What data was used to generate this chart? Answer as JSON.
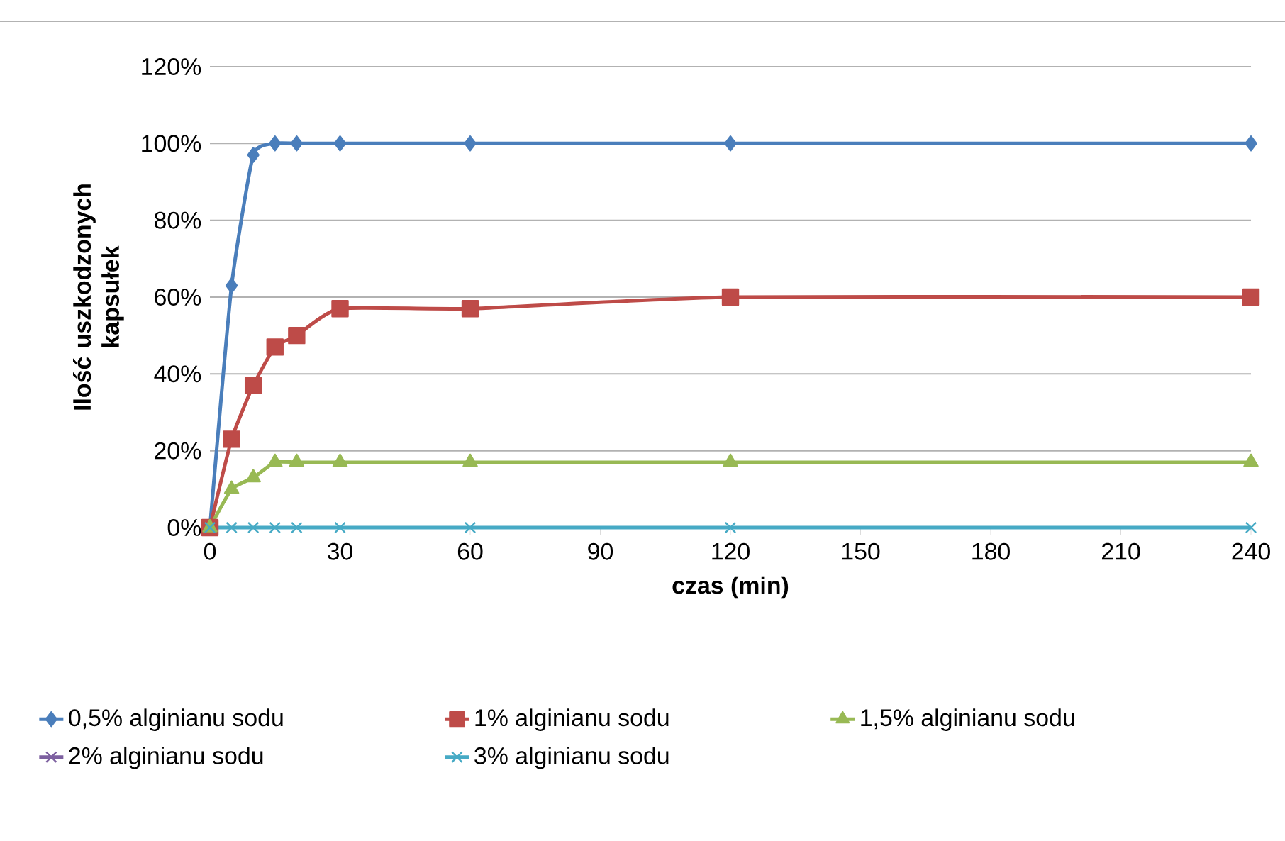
{
  "chart_data": {
    "type": "line",
    "xlabel": "czas (min)",
    "ylabel": "Ilość uszkodzonych kapsułek",
    "x": [
      0,
      5,
      10,
      15,
      20,
      30,
      60,
      120,
      240
    ],
    "xlim": [
      0,
      240
    ],
    "xticks": [
      0,
      30,
      60,
      90,
      120,
      150,
      180,
      210,
      240
    ],
    "ylim": [
      0,
      120
    ],
    "yticks": [
      {
        "value": 0,
        "label": "0%"
      },
      {
        "value": 20,
        "label": "20%"
      },
      {
        "value": 40,
        "label": "40%"
      },
      {
        "value": 60,
        "label": "60%"
      },
      {
        "value": 80,
        "label": "80%"
      },
      {
        "value": 100,
        "label": "100%"
      },
      {
        "value": 120,
        "label": "120%"
      }
    ],
    "grid": "y",
    "legend": "bottom",
    "series": [
      {
        "name": "0,5% alginianu sodu",
        "color": "#4a7ebb",
        "marker": "diamond",
        "values": [
          0,
          63,
          97,
          100,
          100,
          100,
          100,
          100,
          100
        ]
      },
      {
        "name": "1% alginianu sodu",
        "color": "#be4b48",
        "marker": "square",
        "values": [
          0,
          23,
          37,
          47,
          50,
          57,
          57,
          60,
          60
        ]
      },
      {
        "name": "1,5% alginianu sodu",
        "color": "#98b954",
        "marker": "triangle",
        "values": [
          0,
          10,
          13,
          17,
          17,
          17,
          17,
          17,
          17
        ]
      },
      {
        "name": "2% alginianu sodu",
        "color": "#7d60a0",
        "marker": "cross",
        "values": [
          null,
          null,
          null,
          null,
          null,
          null,
          null,
          null,
          null
        ]
      },
      {
        "name": "3% alginianu sodu",
        "color": "#46aac5",
        "marker": "cross",
        "values": [
          0,
          0,
          0,
          0,
          0,
          0,
          0,
          0,
          0
        ]
      }
    ]
  }
}
